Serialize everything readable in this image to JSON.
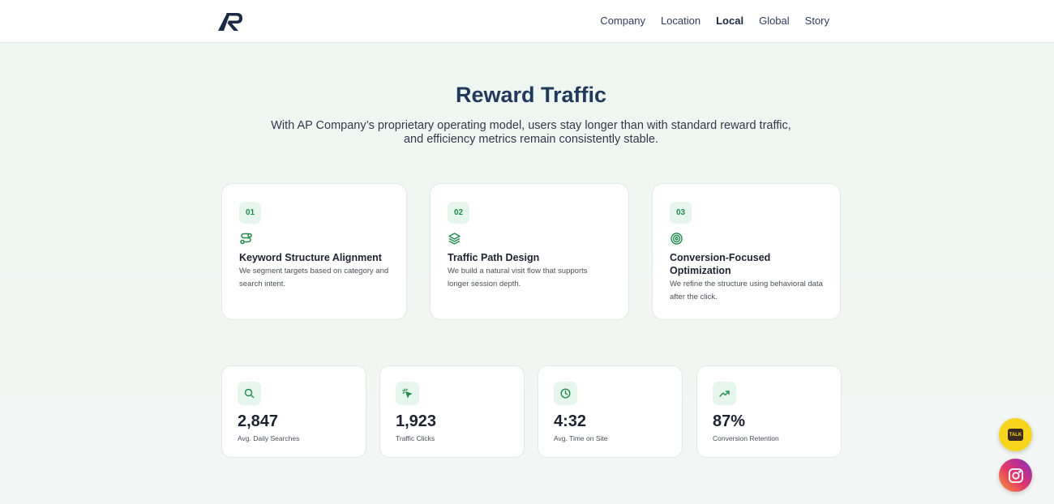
{
  "header": {
    "logo_alt": "AP",
    "nav": [
      {
        "label": "Company",
        "active": false
      },
      {
        "label": "Location",
        "active": false
      },
      {
        "label": "Local",
        "active": true
      },
      {
        "label": "Global",
        "active": false
      },
      {
        "label": "Story",
        "active": false
      }
    ]
  },
  "hero": {
    "title": "Reward Traffic",
    "subtitle_line1": "With AP Company’s proprietary operating model, users stay longer than with standard reward traffic,",
    "subtitle_line2": "and efficiency metrics remain consistently stable."
  },
  "features": [
    {
      "number": "01",
      "icon": "route-icon",
      "title": "Keyword Structure Alignment",
      "description": "We segment targets based on category and search intent."
    },
    {
      "number": "02",
      "icon": "layers-icon",
      "title": "Traffic Path Design",
      "description": "We build a natural visit flow that supports longer session depth."
    },
    {
      "number": "03",
      "icon": "target-icon",
      "title": "Conversion-Focused Optimization",
      "description": "We refine the structure using behavioral data after the click."
    }
  ],
  "stats": [
    {
      "icon": "search-icon",
      "value": "2,847",
      "label": "Avg. Daily Searches"
    },
    {
      "icon": "click-icon",
      "value": "1,923",
      "label": "Traffic Clicks"
    },
    {
      "icon": "clock-icon",
      "value": "4:32",
      "label": "Avg. Time on Site"
    },
    {
      "icon": "trending-up-icon",
      "value": "87%",
      "label": "Conversion Retention"
    }
  ],
  "floating": {
    "talk_label": "TALK"
  },
  "colors": {
    "accent_green": "#1f8a4c",
    "badge_bg": "#e7f6ec",
    "title_navy": "#23395b",
    "kakao_yellow": "#f7d51d"
  }
}
